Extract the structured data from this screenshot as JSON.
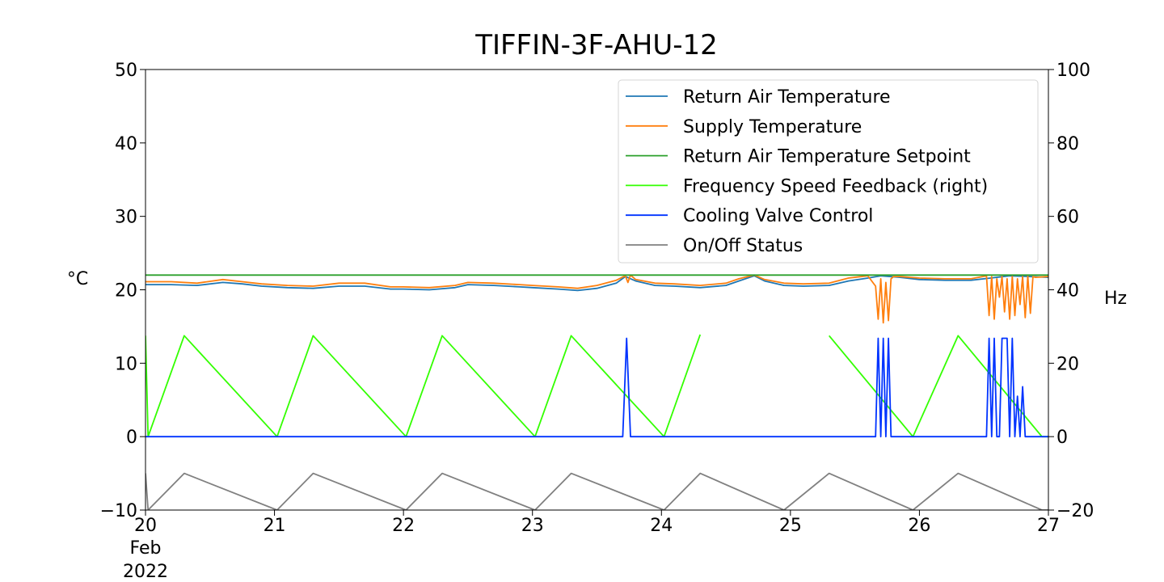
{
  "chart_data": {
    "type": "line",
    "title": "TIFFIN-3F-AHU-12",
    "xlabel": "",
    "ylabel": "°C",
    "y2label": "Hz",
    "xlim": [
      20,
      27
    ],
    "ylim": [
      -10,
      50
    ],
    "y2lim": [
      -20,
      100
    ],
    "x_ticks": [
      "20",
      "21",
      "22",
      "23",
      "24",
      "25",
      "26",
      "27"
    ],
    "x_ticks_values": [
      20,
      21,
      22,
      23,
      24,
      25,
      26,
      27
    ],
    "x_sublabel": [
      "Feb",
      "2022"
    ],
    "y_ticks": [
      "−10",
      "0",
      "10",
      "20",
      "30",
      "40",
      "50"
    ],
    "y_ticks_values": [
      -10,
      0,
      10,
      20,
      30,
      40,
      50
    ],
    "y2_ticks": [
      "−20",
      "0",
      "20",
      "40",
      "60",
      "80",
      "100"
    ],
    "y2_ticks_values": [
      -20,
      0,
      20,
      40,
      60,
      80,
      100
    ],
    "grid": false,
    "legend_position": "top-right",
    "series": [
      {
        "name": "Return Air Temperature",
        "axis": "left",
        "color": "#1f77b4",
        "x": [
          20.0,
          20.2,
          20.4,
          20.6,
          20.75,
          20.9,
          21.1,
          21.3,
          21.5,
          21.7,
          21.9,
          22.0,
          22.2,
          22.4,
          22.5,
          22.7,
          22.9,
          23.0,
          23.2,
          23.35,
          23.5,
          23.65,
          23.72,
          23.8,
          23.95,
          24.1,
          24.3,
          24.5,
          24.6,
          24.72,
          24.8,
          24.95,
          25.1,
          25.3,
          25.45,
          25.6,
          25.7,
          25.85,
          26.0,
          26.2,
          26.4,
          26.55,
          26.7,
          26.85,
          27.0
        ],
        "y": [
          20.7,
          20.7,
          20.6,
          21.0,
          20.8,
          20.5,
          20.3,
          20.2,
          20.5,
          20.5,
          20.1,
          20.1,
          20.0,
          20.3,
          20.7,
          20.6,
          20.4,
          20.3,
          20.1,
          19.9,
          20.2,
          20.9,
          21.8,
          21.2,
          20.6,
          20.5,
          20.3,
          20.6,
          21.2,
          21.9,
          21.2,
          20.6,
          20.5,
          20.6,
          21.2,
          21.6,
          21.9,
          21.7,
          21.4,
          21.3,
          21.3,
          21.6,
          21.9,
          21.8,
          21.7
        ]
      },
      {
        "name": "Supply Temperature",
        "axis": "left",
        "color": "#ff7f0e",
        "x": [
          20.0,
          20.2,
          20.4,
          20.6,
          20.75,
          20.9,
          21.1,
          21.3,
          21.5,
          21.7,
          21.9,
          22.0,
          22.2,
          22.4,
          22.5,
          22.7,
          22.9,
          23.0,
          23.2,
          23.35,
          23.5,
          23.65,
          23.72,
          23.74,
          23.76,
          23.8,
          23.95,
          24.1,
          24.3,
          24.5,
          24.6,
          24.72,
          24.8,
          24.95,
          25.1,
          25.3,
          25.45,
          25.6,
          25.66,
          25.68,
          25.7,
          25.72,
          25.74,
          25.76,
          25.78,
          25.8,
          25.85,
          26.0,
          26.2,
          26.4,
          26.52,
          26.54,
          26.56,
          26.58,
          26.6,
          26.62,
          26.64,
          26.66,
          26.68,
          26.7,
          26.72,
          26.74,
          26.76,
          26.78,
          26.8,
          26.82,
          26.84,
          26.86,
          26.88,
          26.9,
          27.0
        ],
        "y": [
          21.1,
          21.1,
          20.9,
          21.4,
          21.1,
          20.8,
          20.6,
          20.5,
          20.9,
          20.9,
          20.4,
          20.4,
          20.3,
          20.6,
          21.0,
          20.9,
          20.7,
          20.6,
          20.4,
          20.2,
          20.6,
          21.3,
          21.9,
          21.0,
          22.0,
          21.4,
          20.9,
          20.8,
          20.6,
          20.9,
          21.5,
          22.0,
          21.4,
          20.9,
          20.8,
          20.9,
          21.6,
          21.9,
          20.5,
          16.0,
          21.5,
          15.5,
          21.0,
          15.8,
          21.5,
          21.8,
          21.8,
          21.6,
          21.5,
          21.5,
          21.9,
          16.5,
          21.8,
          16.0,
          21.5,
          19.0,
          21.8,
          17.0,
          21.5,
          16.0,
          21.8,
          16.5,
          21.5,
          18.0,
          21.8,
          16.2,
          21.9,
          16.8,
          21.8,
          21.7,
          21.8
        ]
      },
      {
        "name": "Return Air Temperature Setpoint",
        "axis": "left",
        "color": "#2ca02c",
        "x": [
          20.0,
          27.0
        ],
        "y": [
          22.0,
          22.0
        ]
      },
      {
        "name": "Frequency Speed Feedback (right)",
        "axis": "right",
        "color": "#33ff00",
        "x": [
          20.0,
          20.02,
          20.3,
          21.02,
          21.3,
          22.02,
          22.3,
          23.02,
          23.3,
          24.02,
          24.3,
          24.95,
          25.3,
          25.95,
          26.3,
          26.95,
          27.0
        ],
        "y": [
          27.5,
          0,
          27.5,
          0,
          27.5,
          0,
          27.5,
          0,
          27.5,
          0,
          27.8,
          null,
          27.5,
          0,
          27.5,
          0,
          0
        ],
        "pattern": "square-wave"
      },
      {
        "name": "Cooling Valve Control",
        "axis": "left",
        "color": "#0033ff",
        "x": [
          20.0,
          23.7,
          23.73,
          23.76,
          25.66,
          25.68,
          25.7,
          25.72,
          25.74,
          25.76,
          25.78,
          26.52,
          26.54,
          26.56,
          26.58,
          26.6,
          26.62,
          26.64,
          26.66,
          26.68,
          26.7,
          26.72,
          26.74,
          26.76,
          26.78,
          26.8,
          26.82,
          26.84,
          26.86,
          27.0
        ],
        "y": [
          0,
          0,
          13.4,
          0,
          0,
          13.4,
          0,
          13.4,
          0,
          13.4,
          0,
          0,
          13.4,
          0,
          13.4,
          0,
          0,
          13.4,
          13.4,
          13.4,
          0,
          13.4,
          0,
          5.5,
          0,
          6.8,
          0,
          0,
          0,
          0
        ]
      },
      {
        "name": "On/Off Status",
        "axis": "left",
        "color": "#808080",
        "x": [
          20.0,
          20.02,
          20.3,
          21.02,
          21.3,
          22.02,
          22.3,
          23.02,
          23.3,
          24.02,
          24.3,
          24.95,
          25.3,
          25.95,
          26.3,
          26.95,
          27.0
        ],
        "y": [
          -5,
          -10,
          -5,
          -10,
          -5,
          -10,
          -5,
          -10,
          -5,
          -10,
          -5,
          -10,
          -5,
          -10,
          -5,
          -10,
          -10
        ],
        "pattern": "square-wave"
      }
    ]
  }
}
